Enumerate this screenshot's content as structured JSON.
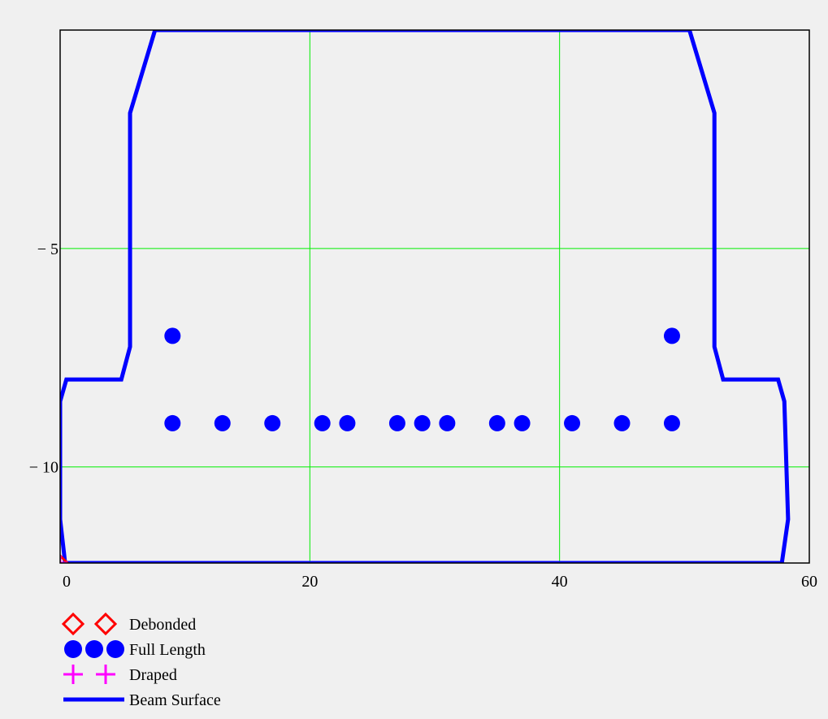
{
  "chart_data": {
    "type": "scatter",
    "title": "",
    "xlabel": "",
    "ylabel": "",
    "xlim": [
      0,
      60
    ],
    "ylim": [
      -12.2,
      0
    ],
    "x_ticks": [
      0,
      20,
      40,
      60
    ],
    "x_tick_labels": [
      "0",
      "20",
      "40",
      "60"
    ],
    "y_ticks": [
      -5,
      -10
    ],
    "y_tick_labels": [
      "− 5",
      "− 10"
    ],
    "grid": true,
    "legend_position": "bottom-left",
    "series": [
      {
        "name": "Debonded",
        "marker": "diamond-open",
        "color": "#ff0000",
        "points": [
          [
            0,
            -12.2
          ]
        ]
      },
      {
        "name": "Full Length",
        "marker": "circle-filled",
        "color": "#0000ff",
        "points": [
          [
            9,
            -7
          ],
          [
            49,
            -7
          ],
          [
            9,
            -9
          ],
          [
            13,
            -9
          ],
          [
            17,
            -9
          ],
          [
            21,
            -9
          ],
          [
            23,
            -9
          ],
          [
            27,
            -9
          ],
          [
            29,
            -9
          ],
          [
            31,
            -9
          ],
          [
            35,
            -9
          ],
          [
            37,
            -9
          ],
          [
            41,
            -9
          ],
          [
            45,
            -9
          ],
          [
            49,
            -9
          ]
        ]
      },
      {
        "name": "Draped",
        "marker": "plus",
        "color": "#ff00ff",
        "points": [
          [
            0,
            -12.2
          ]
        ]
      },
      {
        "name": "Beam Surface",
        "marker": "line",
        "color": "#0000ff",
        "points": [
          [
            0,
            -11.2
          ],
          [
            0,
            -8.5
          ],
          [
            0.5,
            -8
          ],
          [
            4.9,
            -8
          ],
          [
            5.6,
            -7.25
          ],
          [
            5.6,
            -1.9
          ],
          [
            7.6,
            0
          ],
          [
            50.4,
            0
          ],
          [
            52.4,
            -1.9
          ],
          [
            52.4,
            -7.25
          ],
          [
            53.1,
            -8
          ],
          [
            57.5,
            -8
          ],
          [
            58,
            -8.5
          ],
          [
            58.3,
            -11.2
          ],
          [
            57.8,
            -12.2
          ],
          [
            0.4,
            -12.2
          ],
          [
            0,
            -11.2
          ]
        ]
      }
    ]
  }
}
